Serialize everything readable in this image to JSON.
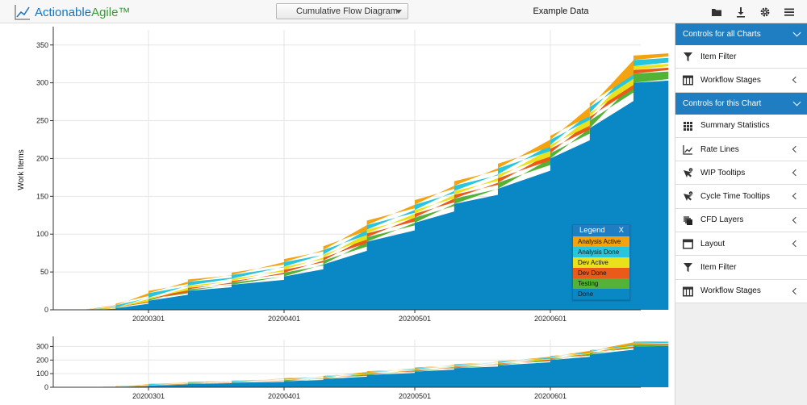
{
  "app": {
    "logo_actionable": "Actionable",
    "logo_agile": "Agile™",
    "chart_selector": "Cumulative Flow Diagram",
    "dataset_name": "Example Data"
  },
  "toolbar_icons": [
    "folder-icon",
    "download-icon",
    "gear-icon",
    "menu-icon"
  ],
  "sidebar": {
    "sections": [
      {
        "title": "Controls for all Charts",
        "items": [
          {
            "label": "Item Filter",
            "icon": "filter-icon",
            "expandable": false
          },
          {
            "label": "Workflow Stages",
            "icon": "columns-icon",
            "expandable": true
          }
        ]
      },
      {
        "title": "Controls for this Chart",
        "items": [
          {
            "label": "Summary Statistics",
            "icon": "grid-icon",
            "expandable": false
          },
          {
            "label": "Rate Lines",
            "icon": "trend-icon",
            "expandable": true
          },
          {
            "label": "WIP Tooltips",
            "icon": "pointer-info-icon",
            "expandable": true
          },
          {
            "label": "Cycle Time Tooltips",
            "icon": "pointer-info-icon",
            "expandable": true
          },
          {
            "label": "CFD Layers",
            "icon": "layers-icon",
            "expandable": true
          },
          {
            "label": "Layout",
            "icon": "window-icon",
            "expandable": true
          },
          {
            "label": "Item Filter",
            "icon": "filter-icon",
            "expandable": false
          },
          {
            "label": "Workflow Stages",
            "icon": "columns-icon",
            "expandable": true
          }
        ]
      }
    ]
  },
  "legend": {
    "title": "Legend",
    "close": "X"
  },
  "colors": {
    "Analysis Active": "#f5a20f",
    "Analysis Done": "#28c6dd",
    "Dev Active": "#e9e11a",
    "Dev Done": "#ea5a18",
    "Testing": "#54b237",
    "Done": "#0a88c6"
  },
  "chart_data": {
    "type": "area",
    "stacked": true,
    "xlabel": "",
    "ylabel": "Work Items",
    "ylim": [
      0,
      370
    ],
    "yticks": [
      0,
      50,
      100,
      150,
      200,
      250,
      300,
      350
    ],
    "x_tick_labels": [
      "20200301",
      "20200401",
      "20200501",
      "20200601"
    ],
    "x": [
      "2020-02-01",
      "2020-02-10",
      "2020-02-20",
      "2020-03-01",
      "2020-03-10",
      "2020-03-20",
      "2020-04-01",
      "2020-04-10",
      "2020-04-20",
      "2020-05-01",
      "2020-05-10",
      "2020-05-20",
      "2020-06-01",
      "2020-06-10",
      "2020-06-20",
      "2020-06-28"
    ],
    "series": [
      {
        "name": "Done",
        "values": [
          0,
          0,
          2,
          12,
          25,
          33,
          44,
          60,
          90,
          115,
          140,
          160,
          200,
          240,
          300,
          305
        ]
      },
      {
        "name": "Testing",
        "values": [
          0,
          0,
          1,
          2,
          2,
          3,
          5,
          5,
          6,
          7,
          7,
          8,
          7,
          10,
          12,
          12
        ]
      },
      {
        "name": "Dev Done",
        "values": [
          0,
          0,
          0,
          0,
          2,
          2,
          4,
          4,
          5,
          5,
          5,
          6,
          6,
          5,
          5,
          5
        ]
      },
      {
        "name": "Dev Active",
        "values": [
          0,
          0,
          0,
          2,
          3,
          3,
          4,
          4,
          5,
          5,
          5,
          5,
          5,
          5,
          5,
          5
        ]
      },
      {
        "name": "Analysis Done",
        "values": [
          0,
          0,
          3,
          6,
          5,
          5,
          6,
          6,
          6,
          7,
          7,
          8,
          7,
          8,
          8,
          8
        ]
      },
      {
        "name": "Analysis Active",
        "values": [
          0,
          0,
          2,
          3,
          3,
          3,
          4,
          5,
          6,
          6,
          6,
          6,
          5,
          5,
          6,
          6
        ]
      }
    ],
    "overview": {
      "ylim": [
        0,
        350
      ],
      "yticks": [
        0,
        100,
        200,
        300
      ]
    }
  }
}
